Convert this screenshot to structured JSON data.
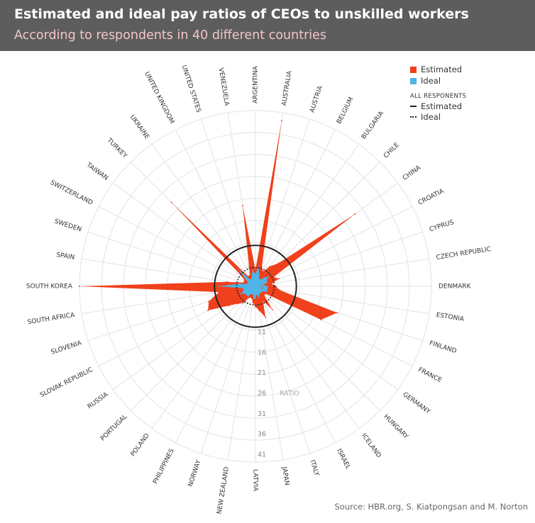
{
  "header": {
    "title": "Estimated and ideal pay ratios of CEOs to unskilled workers",
    "subtitle": "According to respondents in 40 different countries"
  },
  "legend": {
    "estimated_label": "Estimated",
    "ideal_label": "Ideal",
    "all_respondents_heading": "ALL RESPONENTS",
    "all_estimated_label": "Estimated",
    "all_ideal_label": "Ideal"
  },
  "source": "Source: HBR.org, S. Kiatpongsan and M. Norton",
  "colors": {
    "estimated": "#f0401c",
    "ideal": "#4fb4e6",
    "header_bg": "#5d5d5d",
    "subtitle": "#f4c6c8"
  },
  "chart_data": {
    "type": "radar",
    "title": "Estimated and ideal pay ratios of CEOs to unskilled workers",
    "subtitle": "According to respondents in 40 different countries",
    "radial_axis_label": "RATIO",
    "radial_ticks": [
      0,
      11,
      16,
      21,
      26,
      31,
      36,
      41
    ],
    "rlim": [
      0,
      43
    ],
    "grid": true,
    "legend_position": "top-right",
    "categories": [
      "ARGENTINA",
      "AUSTRALIA",
      "AUSTRIA",
      "BELGIUM",
      "BULGARIA",
      "CHILE",
      "CHINA",
      "CROATIA",
      "CYPRUS",
      "CZECH REPUBLIC",
      "DENMARK",
      "ESTONIA",
      "FINLAND",
      "FRANCE",
      "GERMANY",
      "HUNGARY",
      "ICELAND",
      "ISRAEL",
      "ITALY",
      "JAPAN",
      "LATVIA",
      "NEW ZEALAND",
      "NORWAY",
      "PHILIPPINES",
      "POLAND",
      "PORTUGAL",
      "RUSSIA",
      "SLOVAK REPUBLIC",
      "SLOVENIA",
      "SOUTH AFRICA",
      "SOUTH KOREA",
      "SPAIN",
      "SWEDEN",
      "SWITZERLAND",
      "TAIWAN",
      "TURKEY",
      "UKRAINE",
      "UNITED KINGDOM",
      "UNITED STATES",
      "VENEZUELA"
    ],
    "series": [
      {
        "name": "Estimated",
        "values": [
          4,
          41,
          5,
          4,
          6,
          8,
          30,
          5,
          6,
          4,
          5,
          6,
          21,
          18,
          3,
          3,
          7,
          4,
          8,
          6,
          5,
          4,
          3,
          3,
          5,
          6,
          8,
          13,
          12,
          9,
          43,
          7,
          3,
          3,
          4,
          29,
          3,
          3,
          5,
          20
        ]
      },
      {
        "name": "Ideal",
        "values": [
          3,
          5,
          3,
          2,
          2,
          3,
          4,
          3,
          3,
          2,
          3,
          3,
          3,
          3,
          2,
          2,
          2,
          2,
          3,
          2,
          3,
          3,
          2,
          2,
          3,
          3,
          3,
          4,
          3,
          3,
          9,
          4,
          2,
          2,
          3,
          6,
          2,
          2,
          3,
          4
        ]
      }
    ],
    "all_respondents": {
      "estimated": 10,
      "ideal": 4.6
    }
  }
}
